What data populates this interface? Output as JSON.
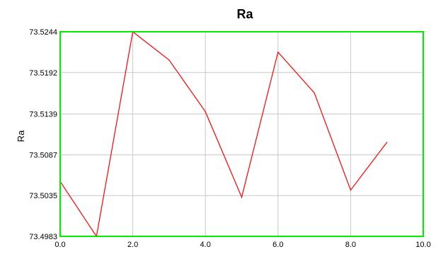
{
  "chart_data": {
    "type": "line",
    "title": "Ra",
    "xlabel": "",
    "ylabel": "Ra",
    "xlim": [
      0.0,
      10.0
    ],
    "ylim": [
      73.4983,
      73.5244
    ],
    "x_ticks": [
      "0.0",
      "2.0",
      "4.0",
      "6.0",
      "8.0",
      "10.0"
    ],
    "x_tick_values": [
      0,
      2,
      4,
      6,
      8,
      10
    ],
    "y_ticks": [
      "73.4983",
      "73.5035",
      "73.5087",
      "73.5139",
      "73.5192",
      "73.5244"
    ],
    "y_tick_values": [
      73.4983,
      73.5035,
      73.5087,
      73.5139,
      73.5192,
      73.5244
    ],
    "grid": true,
    "series": [
      {
        "color": "#ff0000",
        "x": [
          0,
          1,
          2,
          3,
          4,
          5,
          6,
          7,
          8,
          9
        ],
        "y": [
          73.5053,
          73.4983,
          73.5244,
          73.5208,
          73.5142,
          73.5033,
          73.5218,
          73.5166,
          73.5042,
          73.5103
        ]
      }
    ],
    "colors": {
      "plot_border": "#00ee00",
      "grid": "#c8c8c8",
      "line": "#ff0000",
      "background": "#ffffff"
    }
  }
}
